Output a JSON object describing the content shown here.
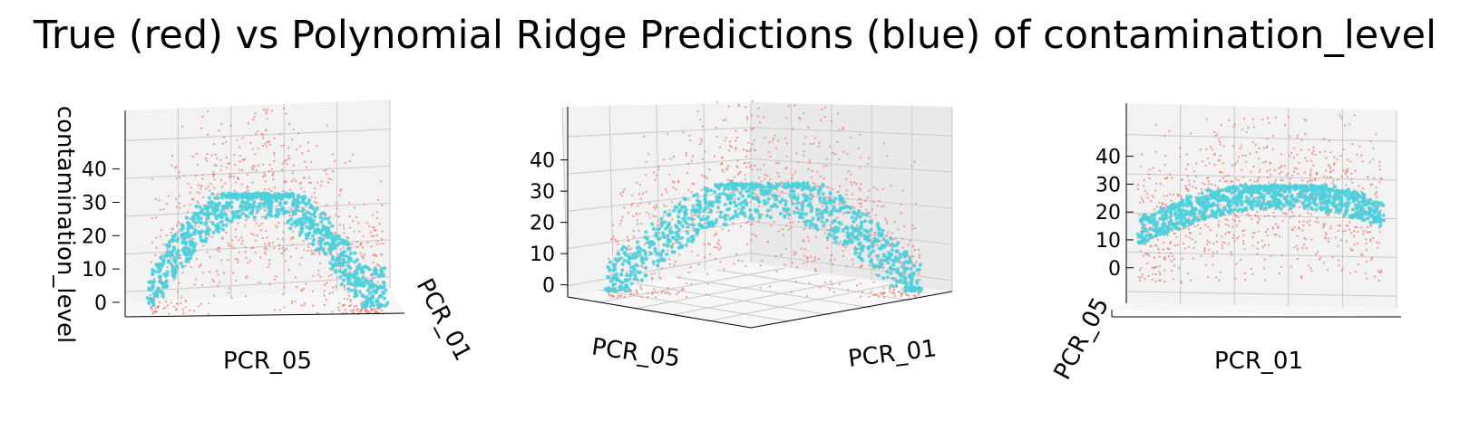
{
  "title": "True (red) vs Polynomial Ridge Predictions (blue) of contamination_level",
  "colors": {
    "true": "#e8776d",
    "pred": "#4dcfdc",
    "pane_back": "#f2f2f2",
    "pane_side": "#e9e9e9",
    "grid": "#c8c8c8"
  },
  "chart_data": [
    {
      "type": "scatter",
      "projection": "3d",
      "view": "side view along PCR_01 axis",
      "xlabel": "PCR_05",
      "ylabel": "PCR_01",
      "zlabel": "contamination_level",
      "zticks": [
        "0",
        "10",
        "20",
        "30",
        "40"
      ],
      "zlim": [
        -3,
        48
      ],
      "series": [
        {
          "name": "true",
          "approx_points": 900,
          "z_range": [
            0,
            47
          ]
        },
        {
          "name": "predicted",
          "approx_points": 900,
          "z_range": [
            1,
            27
          ]
        }
      ]
    },
    {
      "type": "scatter",
      "projection": "3d",
      "view": "corner view",
      "xlabel": "PCR_05",
      "ylabel": "PCR_01",
      "zlabel": "",
      "zticks": [
        "0",
        "10",
        "20",
        "30",
        "40"
      ],
      "zlim": [
        -3,
        48
      ],
      "series": [
        {
          "name": "true",
          "approx_points": 900,
          "z_range": [
            0,
            47
          ]
        },
        {
          "name": "predicted",
          "approx_points": 900,
          "z_range": [
            1,
            27
          ]
        }
      ]
    },
    {
      "type": "scatter",
      "projection": "3d",
      "view": "side view along PCR_05 axis",
      "xlabel": "PCR_01",
      "ylabel": "PCR_05",
      "zlabel": "",
      "zticks": [
        "0",
        "10",
        "20",
        "30",
        "40"
      ],
      "zlim": [
        -3,
        48
      ],
      "series": [
        {
          "name": "true",
          "approx_points": 900,
          "z_range": [
            0,
            47
          ]
        },
        {
          "name": "predicted",
          "approx_points": 900,
          "z_range": [
            1,
            27
          ]
        }
      ]
    }
  ]
}
